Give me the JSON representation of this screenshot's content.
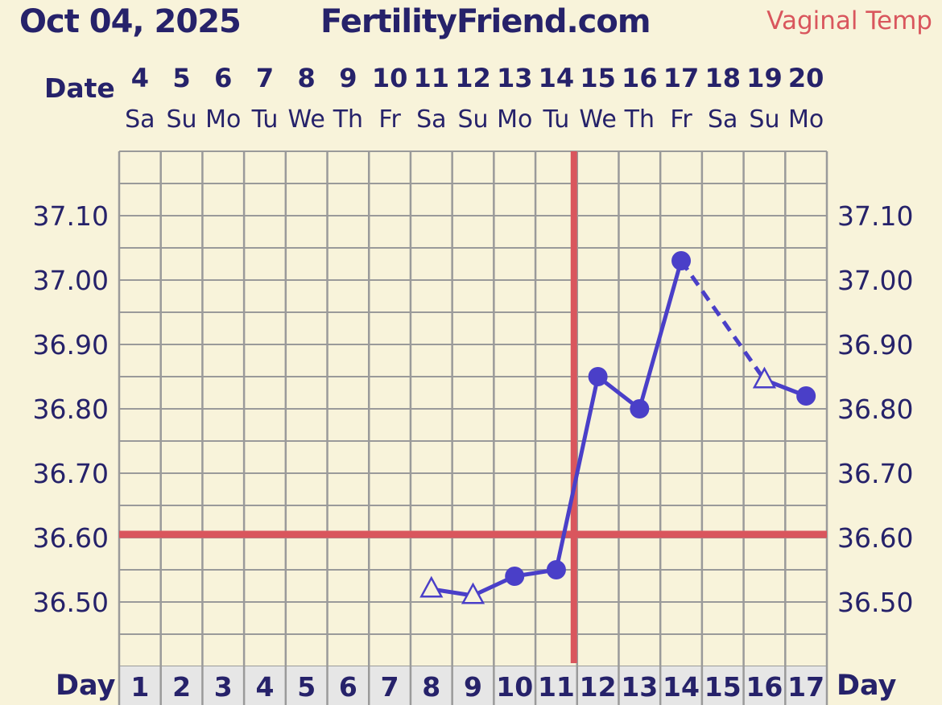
{
  "header": {
    "date": "Oct 04, 2025",
    "site": "FertilityFriend.com",
    "temp_method": "Vaginal Temp"
  },
  "labels": {
    "date_row": "Date",
    "day_row_left": "Day",
    "day_row_right": "Day"
  },
  "colors": {
    "background": "#f8f3da",
    "grid": "#9a9a9a",
    "series": "#4a3fc8",
    "coverline": "#d9565d",
    "text": "#26226a",
    "day_row_bg": "#e6e6e6"
  },
  "chart_data": {
    "type": "line",
    "ylim": [
      36.4,
      37.2
    ],
    "yticks": [
      36.5,
      36.6,
      36.7,
      36.8,
      36.9,
      37.0,
      37.1
    ],
    "ytick_labels": [
      "36.50",
      "36.60",
      "36.70",
      "36.80",
      "36.90",
      "37.00",
      "37.10"
    ],
    "grid": true,
    "dates": [
      "4",
      "5",
      "6",
      "7",
      "8",
      "9",
      "10",
      "11",
      "12",
      "13",
      "14",
      "15",
      "16",
      "17",
      "18",
      "19",
      "20"
    ],
    "weekdays": [
      "Sa",
      "Su",
      "Mo",
      "Tu",
      "We",
      "Th",
      "Fr",
      "Sa",
      "Su",
      "Mo",
      "Tu",
      "We",
      "Th",
      "Fr",
      "Sa",
      "Su",
      "Mo"
    ],
    "cycle_days": [
      "1",
      "2",
      "3",
      "4",
      "5",
      "6",
      "7",
      "8",
      "9",
      "10",
      "11",
      "12",
      "13",
      "14",
      "15",
      "16",
      "17"
    ],
    "points": [
      {
        "day": 8,
        "temp": 36.52,
        "marker": "open-triangle"
      },
      {
        "day": 9,
        "temp": 36.51,
        "marker": "open-triangle"
      },
      {
        "day": 10,
        "temp": 36.54,
        "marker": "filled-circle"
      },
      {
        "day": 11,
        "temp": 36.55,
        "marker": "filled-circle"
      },
      {
        "day": 12,
        "temp": 36.85,
        "marker": "filled-circle"
      },
      {
        "day": 13,
        "temp": 36.8,
        "marker": "filled-circle"
      },
      {
        "day": 14,
        "temp": 37.03,
        "marker": "filled-circle"
      },
      {
        "day": 16,
        "temp": 36.845,
        "marker": "open-triangle"
      },
      {
        "day": 17,
        "temp": 36.82,
        "marker": "filled-circle"
      }
    ],
    "segments": [
      {
        "from": 8,
        "to": 9,
        "style": "solid"
      },
      {
        "from": 9,
        "to": 10,
        "style": "solid"
      },
      {
        "from": 10,
        "to": 11,
        "style": "solid"
      },
      {
        "from": 11,
        "to": 12,
        "style": "solid"
      },
      {
        "from": 12,
        "to": 13,
        "style": "solid"
      },
      {
        "from": 13,
        "to": 14,
        "style": "solid"
      },
      {
        "from": 14,
        "to": 16,
        "style": "dashed"
      },
      {
        "from": 16,
        "to": 17,
        "style": "solid"
      }
    ],
    "coverline_temp": 36.605,
    "ovulation_day": 11
  }
}
